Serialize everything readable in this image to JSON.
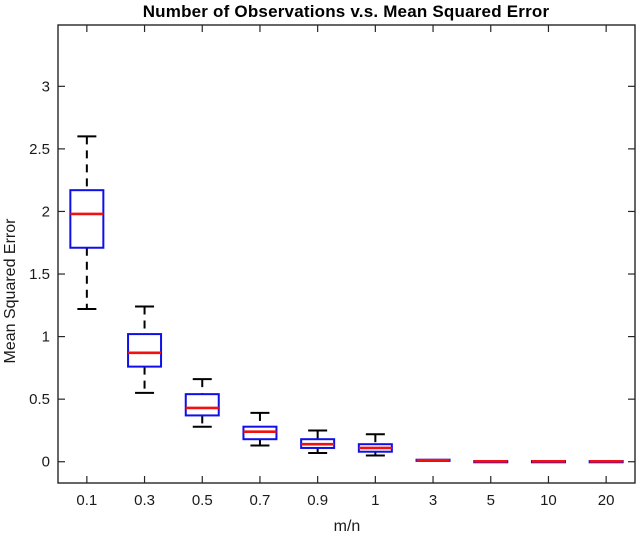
{
  "chart_data": {
    "type": "boxplot",
    "title": "Number of Observations v.s. Mean Squared Error",
    "xlabel": "m/n",
    "ylabel": "Mean Squared Error",
    "categories": [
      "0.1",
      "0.3",
      "0.5",
      "0.7",
      "0.9",
      "1",
      "3",
      "5",
      "10",
      "20"
    ],
    "ytick_values": [
      0,
      0.5,
      1,
      1.5,
      2,
      2.5,
      3
    ],
    "ytick_labels": [
      "0",
      "0.5",
      "1",
      "1.5",
      "2",
      "2.5",
      "3"
    ],
    "ylim": [
      -0.17,
      3.49
    ],
    "grid": false,
    "legend": "none",
    "boxes": [
      {
        "category": "0.1",
        "whisker_low": 1.22,
        "q1": 1.71,
        "median": 1.98,
        "q3": 2.17,
        "whisker_high": 2.6
      },
      {
        "category": "0.3",
        "whisker_low": 0.55,
        "q1": 0.76,
        "median": 0.87,
        "q3": 1.02,
        "whisker_high": 1.24
      },
      {
        "category": "0.5",
        "whisker_low": 0.28,
        "q1": 0.37,
        "median": 0.43,
        "q3": 0.54,
        "whisker_high": 0.66
      },
      {
        "category": "0.7",
        "whisker_low": 0.13,
        "q1": 0.18,
        "median": 0.24,
        "q3": 0.28,
        "whisker_high": 0.39
      },
      {
        "category": "0.9",
        "whisker_low": 0.07,
        "q1": 0.11,
        "median": 0.14,
        "q3": 0.18,
        "whisker_high": 0.25
      },
      {
        "category": "1",
        "whisker_low": 0.05,
        "q1": 0.08,
        "median": 0.11,
        "q3": 0.14,
        "whisker_high": 0.22
      },
      {
        "category": "3",
        "whisker_low": 0.005,
        "q1": 0.008,
        "median": 0.012,
        "q3": 0.016,
        "whisker_high": 0.02
      },
      {
        "category": "5",
        "whisker_low": 0.001,
        "q1": 0.001,
        "median": 0.003,
        "q3": 0.005,
        "whisker_high": 0.005
      },
      {
        "category": "10",
        "whisker_low": 0.001,
        "q1": 0.001,
        "median": 0.003,
        "q3": 0.005,
        "whisker_high": 0.005
      },
      {
        "category": "20",
        "whisker_low": 0.001,
        "q1": 0.001,
        "median": 0.003,
        "q3": 0.005,
        "whisker_high": 0.005
      }
    ],
    "colors": {
      "box_edge": "#0f0fe8",
      "median": "#f21111",
      "whisker": "#000000",
      "axis": "#262626",
      "background": "#ffffff"
    }
  }
}
